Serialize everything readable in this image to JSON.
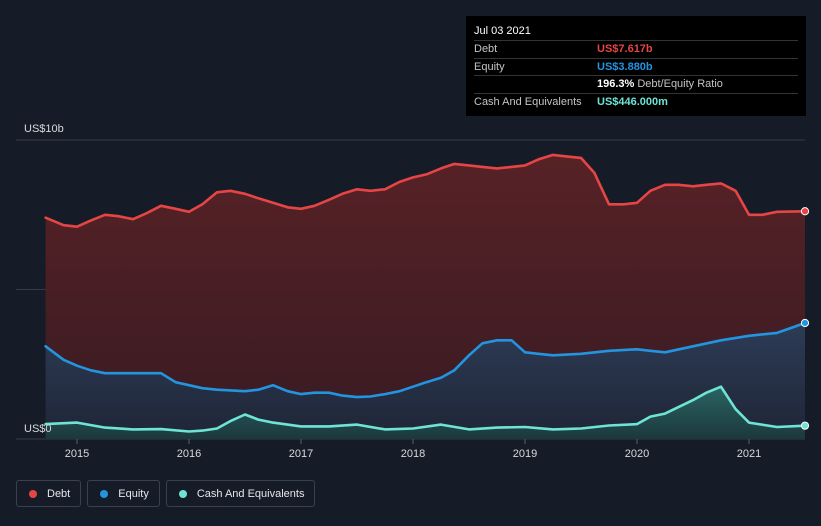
{
  "tooltip": {
    "date": "Jul 03 2021",
    "debt_label": "Debt",
    "debt_value": "US$7.617b",
    "equity_label": "Equity",
    "equity_value": "US$3.880b",
    "ratio_value": "196.3%",
    "ratio_label": "Debt/Equity Ratio",
    "cash_label": "Cash And Equivalents",
    "cash_value": "US$446.000m"
  },
  "legend": {
    "debt": "Debt",
    "equity": "Equity",
    "cash": "Cash And Equivalents"
  },
  "colors": {
    "background": "#151c28",
    "debt": "#e64545",
    "equity": "#2394df",
    "cash": "#6ee4d5",
    "grid": "#353c48"
  },
  "chart_data": {
    "type": "area",
    "ylabel_top": "US$10b",
    "ylabel_bottom": "US$0",
    "ylim": [
      0,
      10
    ],
    "xlim": [
      2014.72,
      2021.5
    ],
    "xticks": [
      2015,
      2016,
      2017,
      2018,
      2019,
      2020,
      2021
    ],
    "xtick_labels": [
      "2015",
      "2016",
      "2017",
      "2018",
      "2019",
      "2020",
      "2021"
    ],
    "series": [
      {
        "name": "Debt",
        "x": [
          2014.72,
          2014.88,
          2015.0,
          2015.12,
          2015.25,
          2015.37,
          2015.5,
          2015.62,
          2015.75,
          2015.88,
          2016.0,
          2016.12,
          2016.25,
          2016.37,
          2016.5,
          2016.62,
          2016.75,
          2016.88,
          2017.0,
          2017.12,
          2017.25,
          2017.37,
          2017.5,
          2017.62,
          2017.75,
          2017.88,
          2018.0,
          2018.12,
          2018.25,
          2018.37,
          2018.5,
          2018.62,
          2018.75,
          2018.88,
          2019.0,
          2019.12,
          2019.25,
          2019.37,
          2019.5,
          2019.62,
          2019.75,
          2019.88,
          2020.0,
          2020.12,
          2020.25,
          2020.37,
          2020.5,
          2020.62,
          2020.75,
          2020.88,
          2021.0,
          2021.12,
          2021.25,
          2021.5
        ],
        "values": [
          7.4,
          7.15,
          7.1,
          7.3,
          7.5,
          7.45,
          7.35,
          7.55,
          7.8,
          7.7,
          7.6,
          7.85,
          8.25,
          8.3,
          8.2,
          8.05,
          7.9,
          7.75,
          7.7,
          7.8,
          8.0,
          8.2,
          8.35,
          8.3,
          8.35,
          8.6,
          8.75,
          8.85,
          9.05,
          9.2,
          9.15,
          9.1,
          9.05,
          9.1,
          9.15,
          9.35,
          9.5,
          9.45,
          9.4,
          8.9,
          7.85,
          7.85,
          7.9,
          8.3,
          8.5,
          8.5,
          8.45,
          8.5,
          8.55,
          8.3,
          7.5,
          7.5,
          7.6,
          7.617
        ]
      },
      {
        "name": "Equity",
        "x": [
          2014.72,
          2014.88,
          2015.0,
          2015.12,
          2015.25,
          2015.5,
          2015.75,
          2015.88,
          2016.0,
          2016.12,
          2016.25,
          2016.5,
          2016.62,
          2016.75,
          2016.88,
          2017.0,
          2017.12,
          2017.25,
          2017.37,
          2017.5,
          2017.62,
          2017.75,
          2017.88,
          2018.0,
          2018.12,
          2018.25,
          2018.37,
          2018.5,
          2018.62,
          2018.75,
          2018.88,
          2019.0,
          2019.12,
          2019.25,
          2019.5,
          2019.75,
          2020.0,
          2020.12,
          2020.25,
          2020.5,
          2020.75,
          2021.0,
          2021.25,
          2021.5
        ],
        "values": [
          3.1,
          2.65,
          2.45,
          2.3,
          2.2,
          2.2,
          2.2,
          1.9,
          1.8,
          1.7,
          1.65,
          1.6,
          1.65,
          1.8,
          1.6,
          1.5,
          1.55,
          1.55,
          1.45,
          1.4,
          1.42,
          1.5,
          1.6,
          1.75,
          1.9,
          2.05,
          2.3,
          2.8,
          3.2,
          3.3,
          3.3,
          2.9,
          2.85,
          2.8,
          2.85,
          2.95,
          3.0,
          2.95,
          2.9,
          3.1,
          3.3,
          3.45,
          3.55,
          3.88
        ]
      },
      {
        "name": "Cash And Equivalents",
        "x": [
          2014.72,
          2015.0,
          2015.25,
          2015.5,
          2015.75,
          2016.0,
          2016.12,
          2016.25,
          2016.37,
          2016.5,
          2016.62,
          2016.75,
          2017.0,
          2017.25,
          2017.5,
          2017.75,
          2018.0,
          2018.25,
          2018.5,
          2018.75,
          2019.0,
          2019.25,
          2019.5,
          2019.75,
          2020.0,
          2020.12,
          2020.25,
          2020.5,
          2020.62,
          2020.75,
          2020.88,
          2021.0,
          2021.25,
          2021.5
        ],
        "values": [
          0.5,
          0.55,
          0.38,
          0.32,
          0.33,
          0.25,
          0.28,
          0.35,
          0.6,
          0.82,
          0.65,
          0.55,
          0.42,
          0.42,
          0.48,
          0.32,
          0.35,
          0.48,
          0.32,
          0.38,
          0.4,
          0.32,
          0.35,
          0.45,
          0.5,
          0.75,
          0.85,
          1.3,
          1.55,
          1.75,
          1.0,
          0.55,
          0.4,
          0.446
        ]
      }
    ]
  }
}
